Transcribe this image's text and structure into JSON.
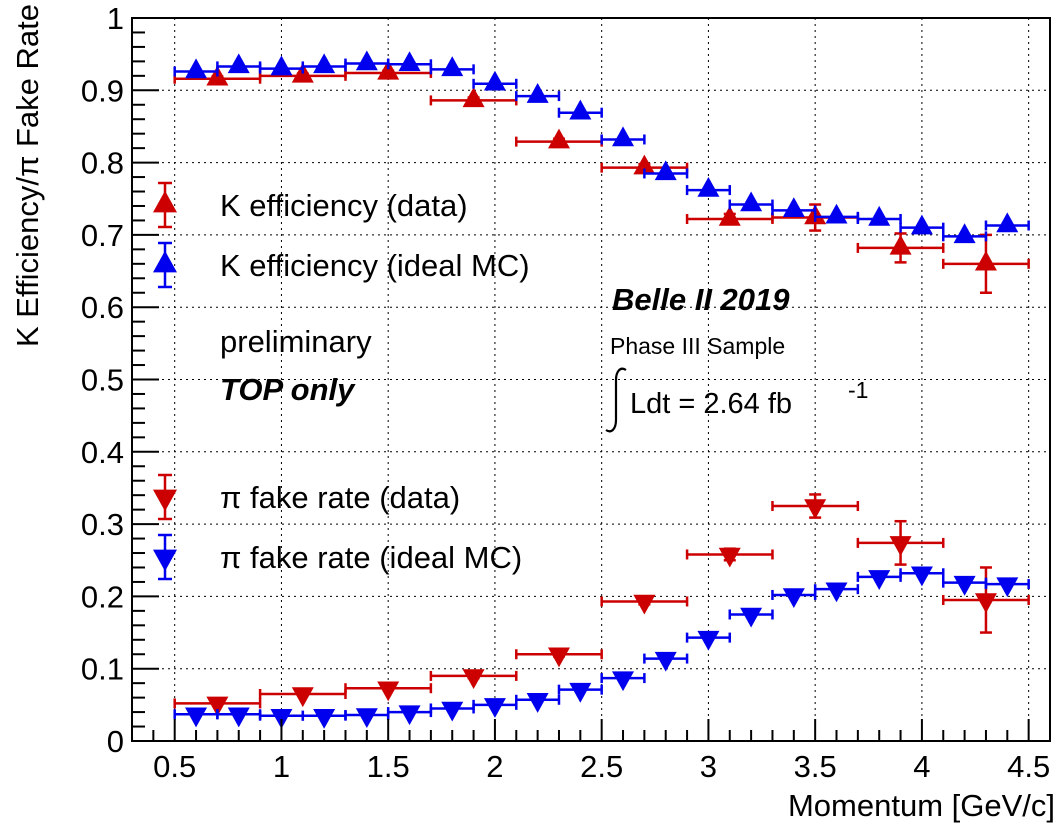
{
  "chart_data": {
    "type": "scatter",
    "xlabel": "Momentum [GeV/c]",
    "ylabel": "K Efficiency/π Fake Rate",
    "xlim": [
      0.3,
      4.6
    ],
    "ylim": [
      0,
      1
    ],
    "grid": true,
    "x_ticks": [
      "0.5",
      "1",
      "1.5",
      "2",
      "2.5",
      "3",
      "3.5",
      "4",
      "4.5"
    ],
    "y_ticks": [
      "0",
      "0.1",
      "0.2",
      "0.3",
      "0.4",
      "0.5",
      "0.6",
      "0.7",
      "0.8",
      "0.9",
      "1"
    ],
    "x_tick_values": [
      0.5,
      1,
      1.5,
      2,
      2.5,
      3,
      3.5,
      4,
      4.5
    ],
    "y_tick_values": [
      0,
      0.1,
      0.2,
      0.3,
      0.4,
      0.5,
      0.6,
      0.7,
      0.8,
      0.9,
      1
    ],
    "legend_placement": "upper-left and middle-left",
    "series": [
      {
        "name": "K efficiency (data)",
        "marker": "triangle-up",
        "color": "#cc0000",
        "points": [
          {
            "x": 0.7,
            "y": 0.916,
            "xerr": 0.2,
            "yerr": 0.003
          },
          {
            "x": 1.1,
            "y": 0.92,
            "xerr": 0.2,
            "yerr": 0.003
          },
          {
            "x": 1.5,
            "y": 0.924,
            "xerr": 0.2,
            "yerr": 0.003
          },
          {
            "x": 1.9,
            "y": 0.886,
            "xerr": 0.2,
            "yerr": 0.004
          },
          {
            "x": 2.3,
            "y": 0.829,
            "xerr": 0.2,
            "yerr": 0.004
          },
          {
            "x": 2.7,
            "y": 0.793,
            "xerr": 0.2,
            "yerr": 0.005
          },
          {
            "x": 3.1,
            "y": 0.722,
            "xerr": 0.2,
            "yerr": 0.007
          },
          {
            "x": 3.5,
            "y": 0.724,
            "xerr": 0.2,
            "yerr": 0.018
          },
          {
            "x": 3.9,
            "y": 0.682,
            "xerr": 0.2,
            "yerr": 0.02
          },
          {
            "x": 4.3,
            "y": 0.66,
            "xerr": 0.2,
            "yerr": 0.04
          }
        ]
      },
      {
        "name": "K efficiency (ideal MC)",
        "marker": "triangle-up",
        "color": "#0000ee",
        "points": [
          {
            "x": 0.6,
            "y": 0.926,
            "xerr": 0.1,
            "yerr": 0.002
          },
          {
            "x": 0.8,
            "y": 0.933,
            "xerr": 0.1,
            "yerr": 0.002
          },
          {
            "x": 1.0,
            "y": 0.93,
            "xerr": 0.1,
            "yerr": 0.002
          },
          {
            "x": 1.2,
            "y": 0.933,
            "xerr": 0.1,
            "yerr": 0.002
          },
          {
            "x": 1.4,
            "y": 0.937,
            "xerr": 0.1,
            "yerr": 0.002
          },
          {
            "x": 1.6,
            "y": 0.936,
            "xerr": 0.1,
            "yerr": 0.002
          },
          {
            "x": 1.8,
            "y": 0.929,
            "xerr": 0.1,
            "yerr": 0.002
          },
          {
            "x": 2.0,
            "y": 0.909,
            "xerr": 0.1,
            "yerr": 0.002
          },
          {
            "x": 2.2,
            "y": 0.892,
            "xerr": 0.1,
            "yerr": 0.002
          },
          {
            "x": 2.4,
            "y": 0.869,
            "xerr": 0.1,
            "yerr": 0.002
          },
          {
            "x": 2.6,
            "y": 0.832,
            "xerr": 0.1,
            "yerr": 0.002
          },
          {
            "x": 2.8,
            "y": 0.785,
            "xerr": 0.1,
            "yerr": 0.002
          },
          {
            "x": 3.0,
            "y": 0.762,
            "xerr": 0.1,
            "yerr": 0.002
          },
          {
            "x": 3.2,
            "y": 0.742,
            "xerr": 0.1,
            "yerr": 0.002
          },
          {
            "x": 3.4,
            "y": 0.734,
            "xerr": 0.1,
            "yerr": 0.002
          },
          {
            "x": 3.6,
            "y": 0.725,
            "xerr": 0.1,
            "yerr": 0.002
          },
          {
            "x": 3.8,
            "y": 0.722,
            "xerr": 0.1,
            "yerr": 0.002
          },
          {
            "x": 4.0,
            "y": 0.71,
            "xerr": 0.1,
            "yerr": 0.002
          },
          {
            "x": 4.2,
            "y": 0.698,
            "xerr": 0.1,
            "yerr": 0.002
          },
          {
            "x": 4.4,
            "y": 0.713,
            "xerr": 0.1,
            "yerr": 0.002
          }
        ]
      },
      {
        "name": "π fake rate (data)",
        "marker": "triangle-down",
        "color": "#cc0000",
        "points": [
          {
            "x": 0.7,
            "y": 0.052,
            "xerr": 0.2,
            "yerr": 0.002
          },
          {
            "x": 1.1,
            "y": 0.065,
            "xerr": 0.2,
            "yerr": 0.002
          },
          {
            "x": 1.5,
            "y": 0.073,
            "xerr": 0.2,
            "yerr": 0.002
          },
          {
            "x": 1.9,
            "y": 0.09,
            "xerr": 0.2,
            "yerr": 0.003
          },
          {
            "x": 2.3,
            "y": 0.12,
            "xerr": 0.2,
            "yerr": 0.003
          },
          {
            "x": 2.7,
            "y": 0.193,
            "xerr": 0.2,
            "yerr": 0.004
          },
          {
            "x": 3.1,
            "y": 0.258,
            "xerr": 0.2,
            "yerr": 0.008
          },
          {
            "x": 3.5,
            "y": 0.325,
            "xerr": 0.2,
            "yerr": 0.016
          },
          {
            "x": 3.9,
            "y": 0.274,
            "xerr": 0.2,
            "yerr": 0.03
          },
          {
            "x": 4.3,
            "y": 0.195,
            "xerr": 0.2,
            "yerr": 0.045
          }
        ]
      },
      {
        "name": "π fake rate (ideal MC)",
        "marker": "triangle-down",
        "color": "#0000ee",
        "points": [
          {
            "x": 0.6,
            "y": 0.037,
            "xerr": 0.1,
            "yerr": 0.002
          },
          {
            "x": 0.8,
            "y": 0.037,
            "xerr": 0.1,
            "yerr": 0.002
          },
          {
            "x": 1.0,
            "y": 0.035,
            "xerr": 0.1,
            "yerr": 0.002
          },
          {
            "x": 1.2,
            "y": 0.035,
            "xerr": 0.1,
            "yerr": 0.002
          },
          {
            "x": 1.4,
            "y": 0.036,
            "xerr": 0.1,
            "yerr": 0.002
          },
          {
            "x": 1.6,
            "y": 0.04,
            "xerr": 0.1,
            "yerr": 0.002
          },
          {
            "x": 1.8,
            "y": 0.045,
            "xerr": 0.1,
            "yerr": 0.002
          },
          {
            "x": 2.0,
            "y": 0.05,
            "xerr": 0.1,
            "yerr": 0.002
          },
          {
            "x": 2.2,
            "y": 0.057,
            "xerr": 0.1,
            "yerr": 0.002
          },
          {
            "x": 2.4,
            "y": 0.071,
            "xerr": 0.1,
            "yerr": 0.002
          },
          {
            "x": 2.6,
            "y": 0.087,
            "xerr": 0.1,
            "yerr": 0.002
          },
          {
            "x": 2.8,
            "y": 0.114,
            "xerr": 0.1,
            "yerr": 0.002
          },
          {
            "x": 3.0,
            "y": 0.143,
            "xerr": 0.1,
            "yerr": 0.002
          },
          {
            "x": 3.2,
            "y": 0.175,
            "xerr": 0.1,
            "yerr": 0.002
          },
          {
            "x": 3.4,
            "y": 0.202,
            "xerr": 0.1,
            "yerr": 0.002
          },
          {
            "x": 3.6,
            "y": 0.21,
            "xerr": 0.1,
            "yerr": 0.002
          },
          {
            "x": 3.8,
            "y": 0.227,
            "xerr": 0.1,
            "yerr": 0.002
          },
          {
            "x": 4.0,
            "y": 0.232,
            "xerr": 0.1,
            "yerr": 0.002
          },
          {
            "x": 4.2,
            "y": 0.219,
            "xerr": 0.1,
            "yerr": 0.002
          },
          {
            "x": 4.4,
            "y": 0.217,
            "xerr": 0.1,
            "yerr": 0.002
          }
        ]
      }
    ],
    "annotations": {
      "preliminary": "preliminary",
      "top_only": "TOP only",
      "experiment": "Belle II 2019",
      "sample": "Phase III Sample",
      "lumi_prefix": "Ldt = 2.64 fb",
      "lumi_exponent": "-1"
    }
  }
}
